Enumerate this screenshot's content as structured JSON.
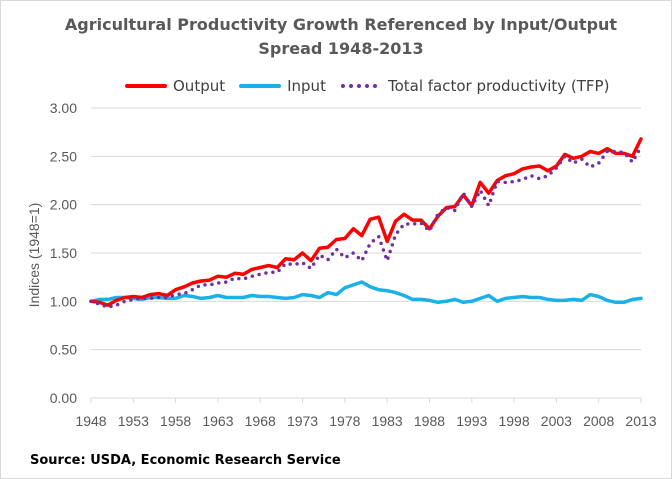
{
  "chart_data": {
    "type": "line",
    "title_line1": "Agricultural Productivity Growth Referenced by Input/Output",
    "title_line2": "Spread 1948-2013",
    "xlabel": "",
    "ylabel": "Indices (1948=1)",
    "ylim": [
      0,
      3
    ],
    "yticks": [
      "0.00",
      "0.50",
      "1.00",
      "1.50",
      "2.00",
      "2.50",
      "3.00"
    ],
    "xlim": [
      1948,
      2013
    ],
    "xticks": [
      "1948",
      "1953",
      "1958",
      "1963",
      "1968",
      "1973",
      "1978",
      "1983",
      "1988",
      "1993",
      "1998",
      "2003",
      "2008",
      "2013"
    ],
    "grid": "horizontal",
    "legend_position": "top",
    "x": [
      1948,
      1949,
      1950,
      1951,
      1952,
      1953,
      1954,
      1955,
      1956,
      1957,
      1958,
      1959,
      1960,
      1961,
      1962,
      1963,
      1964,
      1965,
      1966,
      1967,
      1968,
      1969,
      1970,
      1971,
      1972,
      1973,
      1974,
      1975,
      1976,
      1977,
      1978,
      1979,
      1980,
      1981,
      1982,
      1983,
      1984,
      1985,
      1986,
      1987,
      1988,
      1989,
      1990,
      1991,
      1992,
      1993,
      1994,
      1995,
      1996,
      1997,
      1998,
      1999,
      2000,
      2001,
      2002,
      2003,
      2004,
      2005,
      2006,
      2007,
      2008,
      2009,
      2010,
      2011,
      2012,
      2013
    ],
    "series": [
      {
        "name": "Output",
        "color": "#ff0000",
        "style": "solid",
        "values": [
          1.0,
          0.99,
          0.96,
          1.01,
          1.04,
          1.05,
          1.04,
          1.07,
          1.08,
          1.06,
          1.12,
          1.15,
          1.19,
          1.21,
          1.22,
          1.26,
          1.25,
          1.29,
          1.28,
          1.33,
          1.35,
          1.37,
          1.35,
          1.44,
          1.43,
          1.5,
          1.42,
          1.55,
          1.56,
          1.64,
          1.65,
          1.75,
          1.68,
          1.85,
          1.87,
          1.62,
          1.83,
          1.9,
          1.84,
          1.84,
          1.75,
          1.88,
          1.97,
          1.98,
          2.1,
          1.99,
          2.23,
          2.12,
          2.25,
          2.3,
          2.32,
          2.37,
          2.39,
          2.4,
          2.35,
          2.4,
          2.52,
          2.48,
          2.5,
          2.55,
          2.53,
          2.58,
          2.53,
          2.53,
          2.5,
          2.68
        ]
      },
      {
        "name": "Input",
        "color": "#1ab0e8",
        "style": "solid",
        "values": [
          1.0,
          1.02,
          1.02,
          1.04,
          1.04,
          1.03,
          1.02,
          1.04,
          1.04,
          1.03,
          1.03,
          1.06,
          1.05,
          1.03,
          1.04,
          1.06,
          1.04,
          1.04,
          1.04,
          1.06,
          1.05,
          1.05,
          1.04,
          1.03,
          1.04,
          1.07,
          1.06,
          1.04,
          1.09,
          1.07,
          1.14,
          1.17,
          1.2,
          1.15,
          1.12,
          1.11,
          1.09,
          1.06,
          1.02,
          1.02,
          1.01,
          0.99,
          1.0,
          1.02,
          0.99,
          1.0,
          1.03,
          1.06,
          1.0,
          1.03,
          1.04,
          1.05,
          1.04,
          1.04,
          1.02,
          1.01,
          1.01,
          1.02,
          1.01,
          1.07,
          1.05,
          1.01,
          0.99,
          0.99,
          1.02,
          1.03
        ]
      },
      {
        "name": "Total factor productivity (TFP)",
        "color": "#7030a0",
        "style": "dotted",
        "values": [
          1.0,
          0.97,
          0.94,
          0.96,
          1.0,
          1.02,
          1.03,
          1.03,
          1.04,
          1.04,
          1.07,
          1.08,
          1.12,
          1.17,
          1.17,
          1.19,
          1.2,
          1.24,
          1.23,
          1.26,
          1.28,
          1.3,
          1.3,
          1.39,
          1.38,
          1.4,
          1.34,
          1.48,
          1.43,
          1.54,
          1.45,
          1.5,
          1.42,
          1.6,
          1.67,
          1.42,
          1.69,
          1.8,
          1.8,
          1.81,
          1.73,
          1.9,
          1.97,
          1.94,
          2.12,
          1.98,
          2.15,
          1.99,
          2.24,
          2.23,
          2.24,
          2.26,
          2.3,
          2.27,
          2.3,
          2.38,
          2.5,
          2.43,
          2.47,
          2.39,
          2.43,
          2.55,
          2.55,
          2.54,
          2.44,
          2.6
        ]
      }
    ]
  },
  "source": "Source: USDA, Economic Research Service"
}
